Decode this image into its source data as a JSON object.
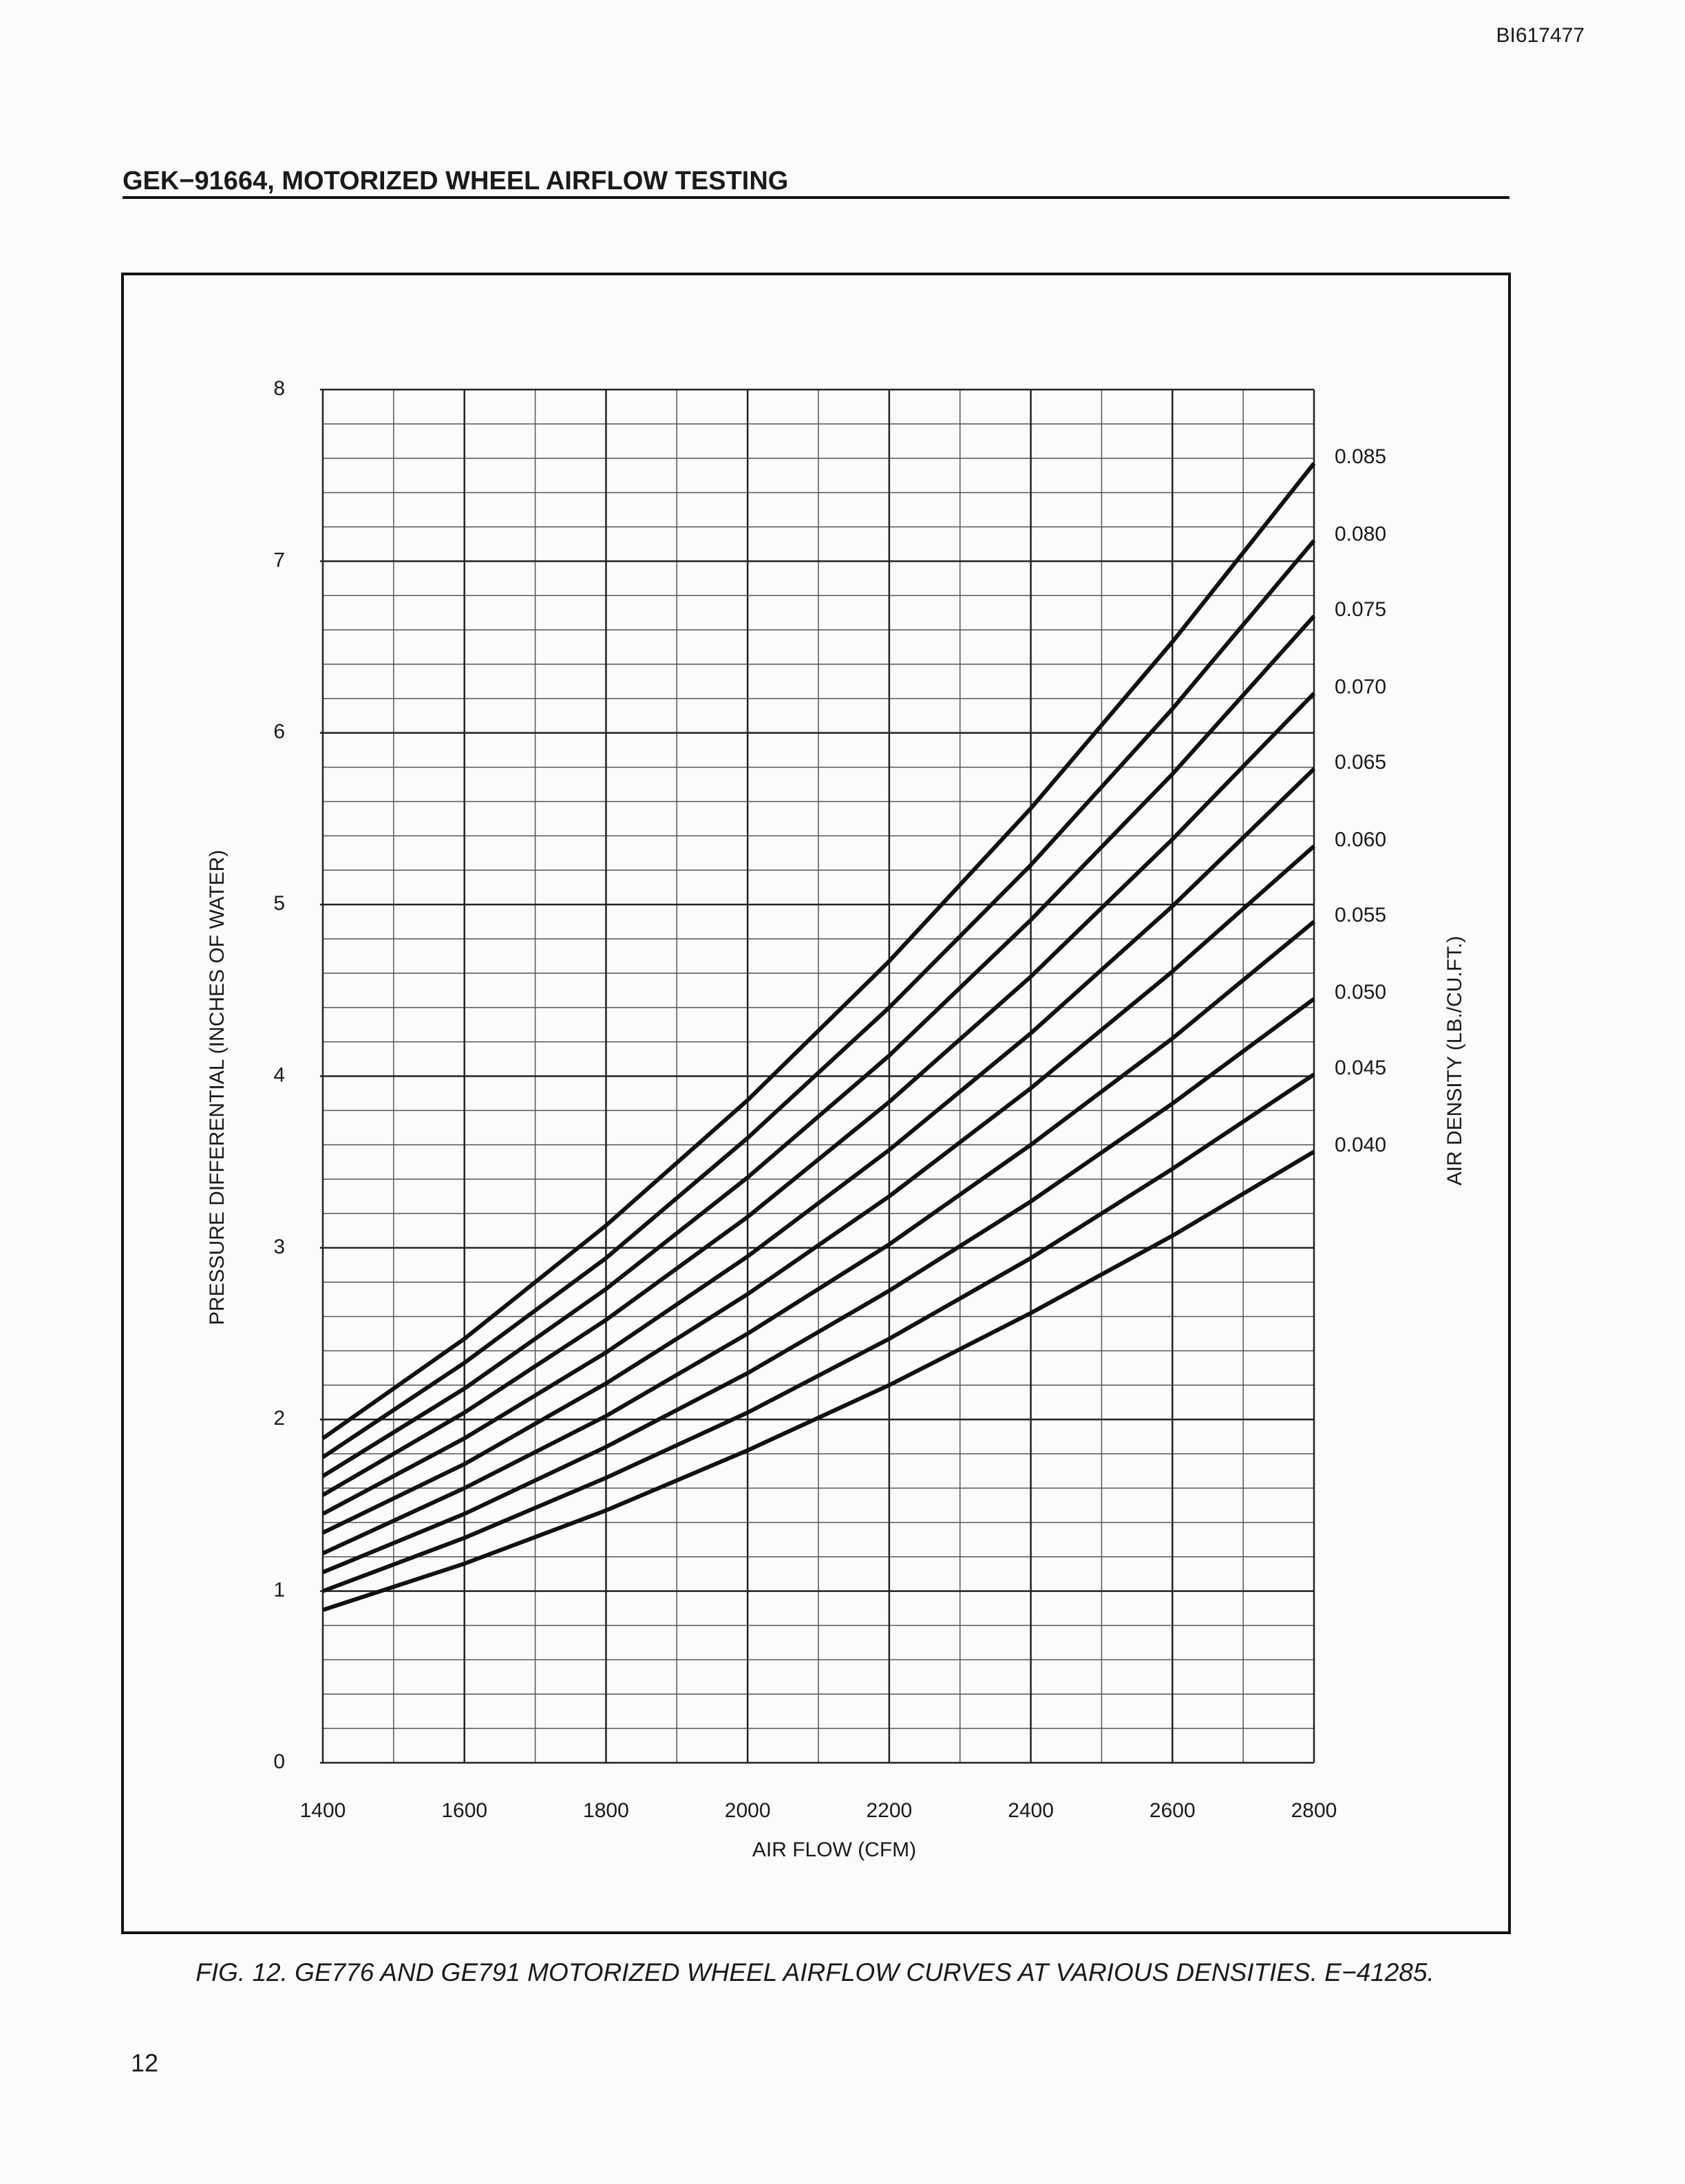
{
  "document_id": "BI617477",
  "header": {
    "title": "GEK−91664, MOTORIZED WHEEL AIRFLOW TESTING"
  },
  "chart_data": {
    "type": "line",
    "xlabel": "AIR FLOW (CFM)",
    "ylabel": "PRESSURE DIFFERENTIAL (INCHES OF WATER)",
    "y2label": "AIR DENSITY (LB./CU.FT.)",
    "x": [
      1400,
      1600,
      1800,
      2000,
      2200,
      2400,
      2600,
      2800
    ],
    "xlim": [
      1400,
      2800
    ],
    "xticks": [
      1400,
      1600,
      1800,
      2000,
      2200,
      2400,
      2600,
      2800
    ],
    "ylim": [
      0,
      8
    ],
    "yticks": [
      0,
      1,
      2,
      3,
      4,
      5,
      6,
      7,
      8
    ],
    "grid": true,
    "minor_grid": {
      "x": 2,
      "y": 5
    },
    "series": [
      {
        "name": "0.085",
        "color": "#111111",
        "values": [
          1.89,
          2.47,
          3.13,
          3.86,
          4.67,
          5.56,
          6.53,
          7.57
        ]
      },
      {
        "name": "0.080",
        "color": "#111111",
        "values": [
          1.78,
          2.33,
          2.94,
          3.64,
          4.4,
          5.23,
          6.14,
          7.12
        ]
      },
      {
        "name": "0.075",
        "color": "#111111",
        "values": [
          1.67,
          2.18,
          2.76,
          3.41,
          4.12,
          4.91,
          5.76,
          6.68
        ]
      },
      {
        "name": "0.070",
        "color": "#111111",
        "values": [
          1.56,
          2.04,
          2.58,
          3.18,
          3.85,
          4.58,
          5.38,
          6.23
        ]
      },
      {
        "name": "0.065",
        "color": "#111111",
        "values": [
          1.45,
          1.89,
          2.39,
          2.95,
          3.57,
          4.25,
          4.99,
          5.79
        ]
      },
      {
        "name": "0.060",
        "color": "#111111",
        "values": [
          1.34,
          1.74,
          2.21,
          2.73,
          3.3,
          3.93,
          4.61,
          5.34
        ]
      },
      {
        "name": "0.055",
        "color": "#111111",
        "values": [
          1.22,
          1.6,
          2.02,
          2.5,
          3.02,
          3.6,
          4.22,
          4.9
        ]
      },
      {
        "name": "0.050",
        "color": "#111111",
        "values": [
          1.11,
          1.45,
          1.84,
          2.27,
          2.75,
          3.27,
          3.84,
          4.45
        ]
      },
      {
        "name": "0.045",
        "color": "#111111",
        "values": [
          1.0,
          1.31,
          1.66,
          2.04,
          2.47,
          2.94,
          3.46,
          4.01
        ]
      },
      {
        "name": "0.040",
        "color": "#111111",
        "values": [
          0.89,
          1.16,
          1.47,
          1.82,
          2.2,
          2.62,
          3.07,
          3.56
        ]
      }
    ]
  },
  "caption": "FIG. 12. GE776 AND GE791 MOTORIZED WHEEL AIRFLOW CURVES AT VARIOUS DENSITIES. E−41285.",
  "page_number": "12"
}
